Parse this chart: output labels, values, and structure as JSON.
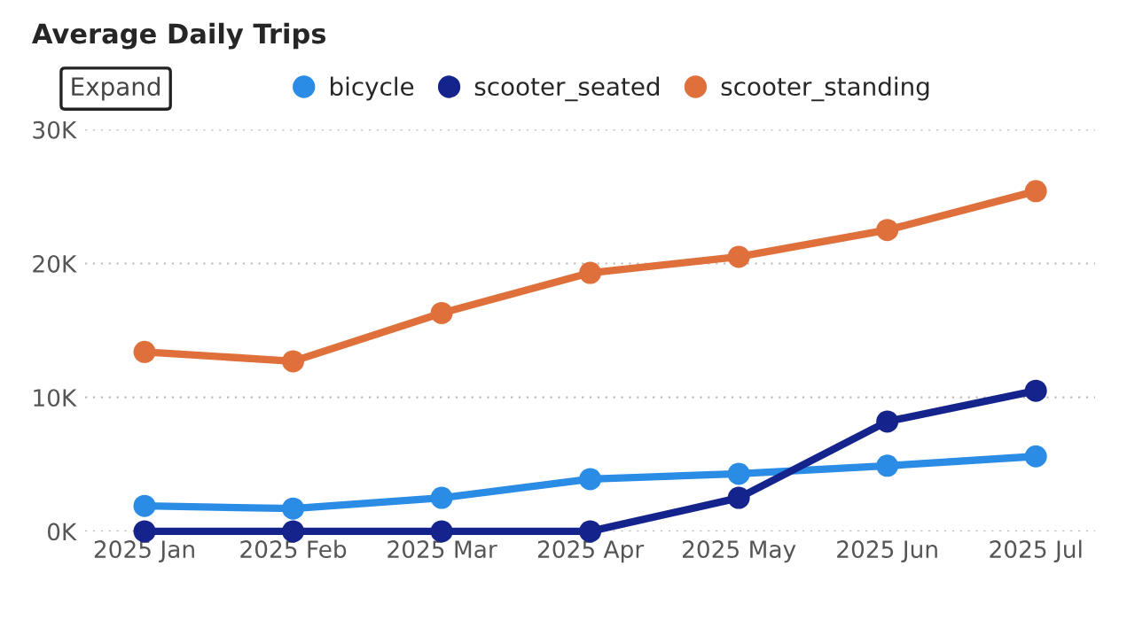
{
  "chart_data": {
    "type": "line",
    "title": "Average Daily Trips",
    "annotations": [
      "Expand"
    ],
    "categories": [
      "2025 Jan",
      "2025 Feb",
      "2025 Mar",
      "2025 Apr",
      "2025 May",
      "2025 Jun",
      "2025 Jul"
    ],
    "series": [
      {
        "name": "bicycle",
        "color": "#2b8ce6",
        "values": [
          1900,
          1700,
          2500,
          3900,
          4300,
          4900,
          5600
        ]
      },
      {
        "name": "scooter_seated",
        "color": "#14248c",
        "values": [
          0,
          0,
          0,
          0,
          2500,
          8200,
          10500
        ]
      },
      {
        "name": "scooter_standing",
        "color": "#e0703b",
        "values": [
          13400,
          12700,
          16300,
          19300,
          20500,
          22500,
          25400
        ]
      }
    ],
    "ylim": [
      0,
      30000
    ],
    "yticks": [
      {
        "value": 0,
        "label": "0K"
      },
      {
        "value": 10000,
        "label": "10K"
      },
      {
        "value": 20000,
        "label": "20K"
      },
      {
        "value": 30000,
        "label": "30K"
      }
    ],
    "grid": "y",
    "legend": "top",
    "marker": "circle",
    "line_style": "solid"
  }
}
